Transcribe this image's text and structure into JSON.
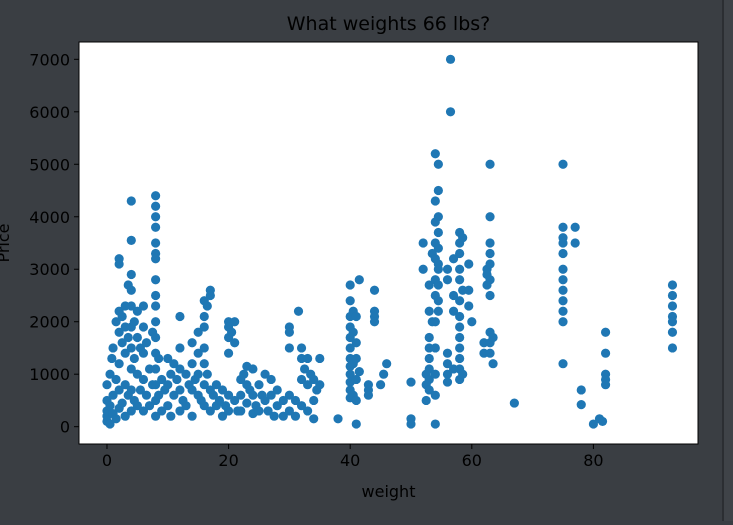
{
  "colors": {
    "background": "#3a3e43",
    "plot_bg": "#ffffff",
    "marker": "#1f77b4",
    "text": "#000000"
  },
  "chart_data": {
    "type": "scatter",
    "title": "What weights 66 lbs?",
    "xlabel": "weight",
    "ylabel": "Price",
    "xlim": [
      -4.6,
      97.2
    ],
    "ylim": [
      -330,
      7330
    ],
    "xticks": [
      0,
      20,
      40,
      60,
      80
    ],
    "yticks": [
      0,
      1000,
      2000,
      3000,
      4000,
      5000,
      6000,
      7000
    ],
    "grid": false,
    "points": [
      [
        0,
        100
      ],
      [
        0,
        200
      ],
      [
        0,
        300
      ],
      [
        0,
        500
      ],
      [
        0,
        800
      ],
      [
        0.5,
        50
      ],
      [
        0.5,
        400
      ],
      [
        0.5,
        1000
      ],
      [
        0.8,
        1300
      ],
      [
        1,
        1500
      ],
      [
        1,
        600
      ],
      [
        1,
        250
      ],
      [
        1.5,
        2000
      ],
      [
        1.5,
        900
      ],
      [
        1.5,
        150
      ],
      [
        2,
        3200
      ],
      [
        2,
        3100
      ],
      [
        2,
        2200
      ],
      [
        2,
        1800
      ],
      [
        2,
        1200
      ],
      [
        2,
        700
      ],
      [
        2,
        350
      ],
      [
        2.5,
        2100
      ],
      [
        2.5,
        1600
      ],
      [
        2.5,
        450
      ],
      [
        3,
        2300
      ],
      [
        3,
        1900
      ],
      [
        3,
        1400
      ],
      [
        3,
        800
      ],
      [
        3,
        200
      ],
      [
        3.5,
        2700
      ],
      [
        3.5,
        1700
      ],
      [
        3.5,
        600
      ],
      [
        4,
        4300
      ],
      [
        4,
        3550
      ],
      [
        4,
        2900
      ],
      [
        4,
        2600
      ],
      [
        4,
        2300
      ],
      [
        4,
        1900
      ],
      [
        4,
        1500
      ],
      [
        4,
        1100
      ],
      [
        4,
        700
      ],
      [
        4,
        300
      ],
      [
        4.5,
        2000
      ],
      [
        4.5,
        1300
      ],
      [
        4.5,
        500
      ],
      [
        5,
        2200
      ],
      [
        5,
        1700
      ],
      [
        5,
        1000
      ],
      [
        5,
        400
      ],
      [
        5.5,
        1500
      ],
      [
        5.5,
        700
      ],
      [
        6,
        2300
      ],
      [
        6,
        1900
      ],
      [
        6,
        1400
      ],
      [
        6,
        900
      ],
      [
        6,
        300
      ],
      [
        6.5,
        1600
      ],
      [
        6.5,
        600
      ],
      [
        7,
        1100
      ],
      [
        7,
        400
      ],
      [
        7.5,
        1800
      ],
      [
        7.5,
        800
      ],
      [
        8,
        4400
      ],
      [
        8,
        4200
      ],
      [
        8,
        4000
      ],
      [
        8,
        3800
      ],
      [
        8,
        3500
      ],
      [
        8,
        3300
      ],
      [
        8,
        3200
      ],
      [
        8,
        2800
      ],
      [
        8,
        2500
      ],
      [
        8,
        2300
      ],
      [
        8,
        2000
      ],
      [
        8,
        1700
      ],
      [
        8,
        1400
      ],
      [
        8,
        1100
      ],
      [
        8,
        800
      ],
      [
        8,
        500
      ],
      [
        8,
        200
      ],
      [
        8.5,
        1300
      ],
      [
        8.5,
        600
      ],
      [
        9,
        900
      ],
      [
        9,
        300
      ],
      [
        9.5,
        700
      ],
      [
        10,
        1300
      ],
      [
        10,
        800
      ],
      [
        10,
        400
      ],
      [
        10.5,
        1000
      ],
      [
        10.5,
        200
      ],
      [
        11,
        1200
      ],
      [
        11,
        600
      ],
      [
        11.5,
        900
      ],
      [
        12,
        2100
      ],
      [
        12,
        1500
      ],
      [
        12,
        1100
      ],
      [
        12,
        700
      ],
      [
        12,
        300
      ],
      [
        12.5,
        500
      ],
      [
        13,
        1000
      ],
      [
        13,
        400
      ],
      [
        13.5,
        800
      ],
      [
        14,
        1600
      ],
      [
        14,
        1200
      ],
      [
        14,
        700
      ],
      [
        14,
        200
      ],
      [
        14.5,
        900
      ],
      [
        15,
        1800
      ],
      [
        15,
        1400
      ],
      [
        15,
        1000
      ],
      [
        15,
        600
      ],
      [
        15.5,
        500
      ],
      [
        16,
        2400
      ],
      [
        16,
        2100
      ],
      [
        16,
        1900
      ],
      [
        16,
        1500
      ],
      [
        16,
        1200
      ],
      [
        16,
        800
      ],
      [
        16,
        400
      ],
      [
        16.5,
        2300
      ],
      [
        16.5,
        1000
      ],
      [
        17,
        2600
      ],
      [
        17,
        2500
      ],
      [
        17,
        700
      ],
      [
        17,
        300
      ],
      [
        17.5,
        600
      ],
      [
        18,
        800
      ],
      [
        18,
        400
      ],
      [
        18.5,
        500
      ],
      [
        19,
        700
      ],
      [
        19,
        200
      ],
      [
        19.5,
        400
      ],
      [
        20,
        2000
      ],
      [
        20,
        1900
      ],
      [
        20,
        1700
      ],
      [
        20,
        1400
      ],
      [
        20,
        600
      ],
      [
        20,
        300
      ],
      [
        20.5,
        1800
      ],
      [
        21,
        2000
      ],
      [
        21,
        1600
      ],
      [
        21,
        500
      ],
      [
        21.5,
        300
      ],
      [
        22,
        900
      ],
      [
        22,
        600
      ],
      [
        22,
        300
      ],
      [
        22.5,
        1000
      ],
      [
        23,
        1150
      ],
      [
        23,
        800
      ],
      [
        23,
        450
      ],
      [
        23.5,
        700
      ],
      [
        24,
        1100
      ],
      [
        24,
        600
      ],
      [
        24,
        250
      ],
      [
        24.5,
        400
      ],
      [
        25,
        800
      ],
      [
        25,
        300
      ],
      [
        25.5,
        600
      ],
      [
        26,
        1000
      ],
      [
        26,
        500
      ],
      [
        26.5,
        300
      ],
      [
        27,
        900
      ],
      [
        27,
        600
      ],
      [
        27.5,
        200
      ],
      [
        28,
        700
      ],
      [
        28,
        400
      ],
      [
        29,
        500
      ],
      [
        29,
        200
      ],
      [
        30,
        1900
      ],
      [
        30,
        1800
      ],
      [
        30,
        1500
      ],
      [
        30,
        600
      ],
      [
        30,
        300
      ],
      [
        31,
        500
      ],
      [
        31,
        200
      ],
      [
        31.5,
        2200
      ],
      [
        32,
        1500
      ],
      [
        32,
        1300
      ],
      [
        32,
        900
      ],
      [
        32,
        400
      ],
      [
        32.5,
        1100
      ],
      [
        33,
        1300
      ],
      [
        33,
        800
      ],
      [
        33,
        300
      ],
      [
        33.5,
        1000
      ],
      [
        34,
        900
      ],
      [
        34,
        500
      ],
      [
        34,
        150
      ],
      [
        34.5,
        700
      ],
      [
        35,
        1300
      ],
      [
        35,
        800
      ],
      [
        38,
        150
      ],
      [
        40,
        2700
      ],
      [
        40,
        2400
      ],
      [
        40,
        2100
      ],
      [
        40,
        1900
      ],
      [
        40,
        1700
      ],
      [
        40,
        1500
      ],
      [
        40,
        1300
      ],
      [
        40,
        1150
      ],
      [
        40,
        1000
      ],
      [
        40,
        850
      ],
      [
        40,
        700
      ],
      [
        40,
        550
      ],
      [
        40.5,
        2200
      ],
      [
        40.5,
        1800
      ],
      [
        40.5,
        1200
      ],
      [
        40.5,
        600
      ],
      [
        41,
        2100
      ],
      [
        41,
        1600
      ],
      [
        41,
        1300
      ],
      [
        41,
        900
      ],
      [
        41,
        500
      ],
      [
        41,
        50
      ],
      [
        41.5,
        2800
      ],
      [
        41.5,
        1050
      ],
      [
        43,
        800
      ],
      [
        43,
        700
      ],
      [
        43,
        600
      ],
      [
        44,
        2600
      ],
      [
        44,
        2200
      ],
      [
        44,
        2100
      ],
      [
        44,
        2000
      ],
      [
        45,
        800
      ],
      [
        45.5,
        1000
      ],
      [
        46,
        1200
      ],
      [
        50,
        850
      ],
      [
        50,
        150
      ],
      [
        50,
        50
      ],
      [
        52,
        3500
      ],
      [
        52,
        3000
      ],
      [
        52.5,
        1000
      ],
      [
        52.5,
        800
      ],
      [
        52.5,
        500
      ],
      [
        53,
        2700
      ],
      [
        53,
        2200
      ],
      [
        53,
        1700
      ],
      [
        53,
        1500
      ],
      [
        53,
        1300
      ],
      [
        53,
        1100
      ],
      [
        53,
        900
      ],
      [
        53,
        700
      ],
      [
        53.5,
        3300
      ],
      [
        53.5,
        2000
      ],
      [
        54,
        5200
      ],
      [
        54,
        4300
      ],
      [
        54,
        3900
      ],
      [
        54,
        3500
      ],
      [
        54,
        3200
      ],
      [
        54,
        2800
      ],
      [
        54,
        2500
      ],
      [
        54,
        2000
      ],
      [
        54,
        1500
      ],
      [
        54,
        1000
      ],
      [
        54,
        600
      ],
      [
        54,
        50
      ],
      [
        54.5,
        5000
      ],
      [
        54.5,
        4500
      ],
      [
        54.5,
        4000
      ],
      [
        54.5,
        3700
      ],
      [
        54.5,
        3400
      ],
      [
        54.5,
        3100
      ],
      [
        54.5,
        3000
      ],
      [
        54.5,
        2700
      ],
      [
        54.5,
        2400
      ],
      [
        54.5,
        2200
      ],
      [
        56,
        3000
      ],
      [
        56,
        2800
      ],
      [
        56,
        1400
      ],
      [
        56,
        1200
      ],
      [
        56,
        1000
      ],
      [
        56,
        850
      ],
      [
        56.5,
        7000
      ],
      [
        56.5,
        6000
      ],
      [
        57,
        3200
      ],
      [
        57,
        2500
      ],
      [
        57,
        2200
      ],
      [
        57,
        1100
      ],
      [
        58,
        3700
      ],
      [
        58,
        3500
      ],
      [
        58,
        3300
      ],
      [
        58,
        3000
      ],
      [
        58,
        2800
      ],
      [
        58,
        2400
      ],
      [
        58,
        2100
      ],
      [
        58,
        1900
      ],
      [
        58,
        1700
      ],
      [
        58,
        1500
      ],
      [
        58,
        1300
      ],
      [
        58,
        1100
      ],
      [
        58,
        900
      ],
      [
        58.5,
        3600
      ],
      [
        58.5,
        2600
      ],
      [
        58.5,
        1000
      ],
      [
        59.5,
        3100
      ],
      [
        59.5,
        2600
      ],
      [
        59.5,
        2300
      ],
      [
        60,
        2000
      ],
      [
        62,
        1600
      ],
      [
        62,
        1400
      ],
      [
        62.5,
        3000
      ],
      [
        62.5,
        2900
      ],
      [
        62.5,
        2700
      ],
      [
        63,
        5000
      ],
      [
        63,
        4000
      ],
      [
        63,
        3500
      ],
      [
        63,
        3300
      ],
      [
        63,
        3100
      ],
      [
        63,
        2800
      ],
      [
        63,
        2500
      ],
      [
        63,
        1800
      ],
      [
        63,
        1600
      ],
      [
        63,
        1400
      ],
      [
        63.5,
        1200
      ],
      [
        63.5,
        1700
      ],
      [
        67,
        450
      ],
      [
        75,
        5000
      ],
      [
        75,
        3800
      ],
      [
        75,
        3600
      ],
      [
        75,
        3500
      ],
      [
        75,
        3300
      ],
      [
        75,
        3000
      ],
      [
        75,
        2800
      ],
      [
        75,
        2600
      ],
      [
        75,
        2400
      ],
      [
        75,
        2200
      ],
      [
        75,
        2000
      ],
      [
        75,
        1200
      ],
      [
        77,
        3800
      ],
      [
        77,
        3500
      ],
      [
        78,
        700
      ],
      [
        78,
        420
      ],
      [
        80,
        50
      ],
      [
        81,
        150
      ],
      [
        81.5,
        100
      ],
      [
        82,
        1800
      ],
      [
        82,
        1400
      ],
      [
        82,
        1000
      ],
      [
        82,
        900
      ],
      [
        82,
        800
      ],
      [
        93,
        2700
      ],
      [
        93,
        2500
      ],
      [
        93,
        2300
      ],
      [
        93,
        2100
      ],
      [
        93,
        2000
      ],
      [
        93,
        1800
      ],
      [
        93,
        1500
      ]
    ]
  }
}
